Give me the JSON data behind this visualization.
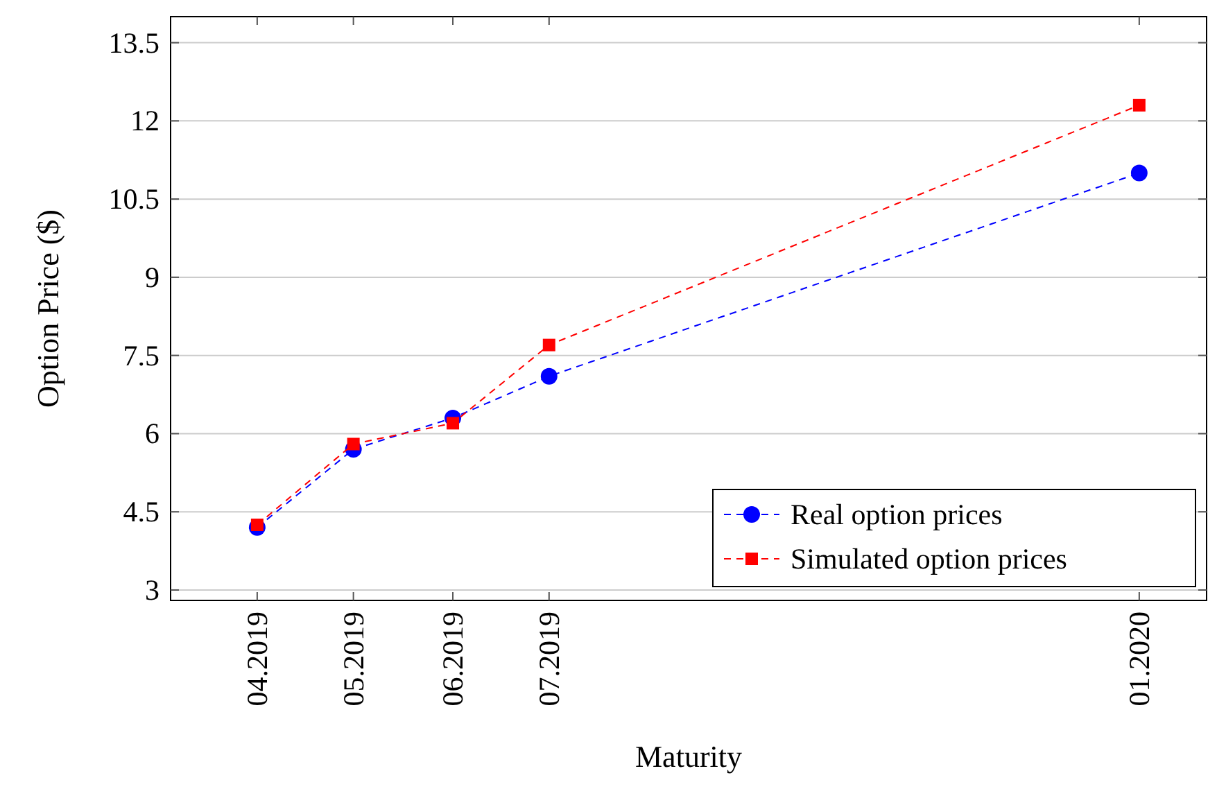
{
  "chart_data": {
    "type": "line",
    "xlabel": "Maturity",
    "ylabel": "Option Price ($)",
    "x": [
      "2019-04",
      "2019-05",
      "2019-06",
      "2019-07",
      "2020-01"
    ],
    "xlim": [
      "2019-03-05",
      "2020-01-22"
    ],
    "xticks": [
      {
        "value": "2019-04",
        "label": "04.2019"
      },
      {
        "value": "2019-05",
        "label": "05.2019"
      },
      {
        "value": "2019-06",
        "label": "06.2019"
      },
      {
        "value": "2019-07",
        "label": "07.2019"
      },
      {
        "value": "2020-01",
        "label": "01.2020"
      }
    ],
    "ylim": [
      2.8,
      14
    ],
    "yticks": [
      3,
      4.5,
      6,
      7.5,
      9,
      10.5,
      12,
      13.5
    ],
    "grid": "y",
    "legend": "bottom right",
    "line_style": "dashed",
    "series": [
      {
        "name": "Real option prices",
        "color": "#0000ff",
        "marker": "circle",
        "values": [
          4.2,
          5.7,
          6.3,
          7.1,
          11.0
        ]
      },
      {
        "name": "Simulated option prices",
        "color": "#ff0000",
        "marker": "square",
        "values": [
          4.25,
          5.8,
          6.2,
          7.7,
          12.3
        ]
      }
    ]
  }
}
